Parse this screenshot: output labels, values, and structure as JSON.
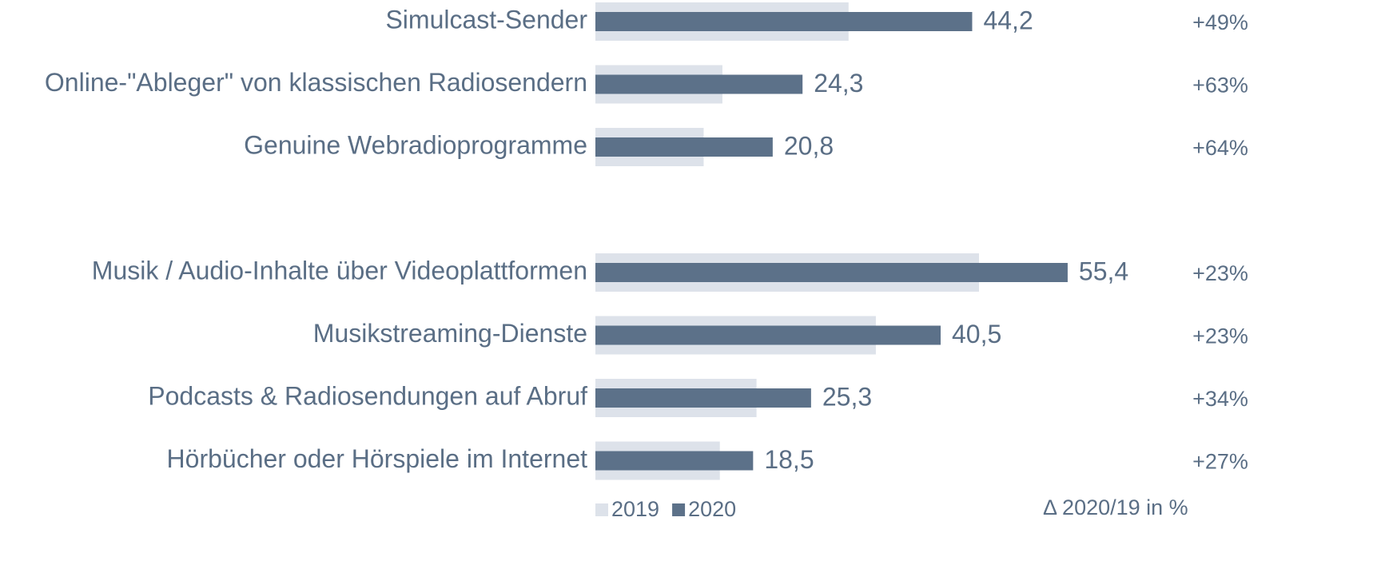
{
  "chart_data": {
    "type": "bar",
    "orientation": "horizontal",
    "categories": [
      "Simulcast-Sender",
      "Online-\"Ableger\" von klassischen Radiosendern",
      "Genuine Webradioprogramme",
      null,
      "Musik / Audio-Inhalte über Videoplattformen",
      "Musikstreaming-Dienste",
      "Podcasts & Radiosendungen auf Abruf",
      "Hörbücher oder Hörspiele im Internet"
    ],
    "series": [
      {
        "name": "2019",
        "color": "#dde2ea",
        "values": [
          29.7,
          14.9,
          12.7,
          null,
          45.0,
          32.9,
          18.9,
          14.6
        ]
      },
      {
        "name": "2020",
        "color": "#5c7189",
        "values": [
          44.2,
          24.3,
          20.8,
          null,
          55.4,
          40.5,
          25.3,
          18.5
        ],
        "value_labels": [
          "44,2",
          "24,3",
          "20,8",
          null,
          "55,4",
          "40,5",
          "25,3",
          "18,5"
        ]
      }
    ],
    "change_labels": [
      "+49%",
      "+63%",
      "+64%",
      null,
      "+23%",
      "+23%",
      "+34%",
      "+27%"
    ],
    "change_title": "Δ 2020/19 in %",
    "xlim": [
      0,
      60
    ]
  }
}
